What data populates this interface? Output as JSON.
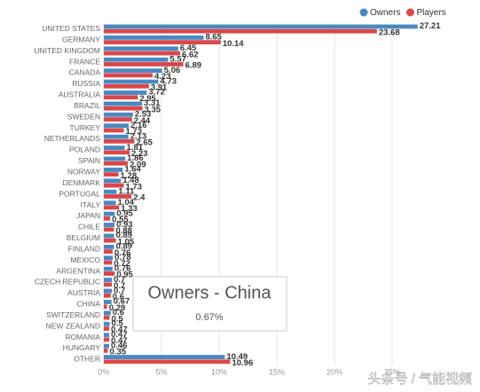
{
  "chart_data": {
    "type": "hbar",
    "categories": [
      "UNITED STATES",
      "GERMANY",
      "UNITED KINGDOM",
      "FRANCE",
      "CANADA",
      "RUSSIA",
      "AUSTRALIA",
      "BRAZIL",
      "SWEDEN",
      "TURKEY",
      "NETHERLANDS",
      "POLAND",
      "SPAIN",
      "NORWAY",
      "DENMARK",
      "PORTUGAL",
      "ITALY",
      "JAPAN",
      "CHILE",
      "BELGIUM",
      "FINLAND",
      "MEXICO",
      "ARGENTINA",
      "CZECH REPUBLIC",
      "AUSTRIA",
      "CHINA",
      "SWITZERLAND",
      "NEW ZEALAND",
      "ROMANIA",
      "HUNGARY",
      "OTHER"
    ],
    "series": [
      {
        "name": "Owners",
        "color": "#4a88c2",
        "values": [
          27.21,
          8.65,
          6.45,
          5.57,
          5.06,
          4.73,
          3.72,
          3.31,
          2.53,
          2.16,
          2.13,
          1.81,
          1.86,
          1.64,
          1.48,
          1.11,
          1.04,
          0.95,
          0.93,
          0.89,
          0.89,
          0.78,
          0.76,
          0.7,
          0.7,
          0.67,
          0.6,
          0.5,
          0.47,
          0.46,
          10.49
        ]
      },
      {
        "name": "Players",
        "color": "#d9474a",
        "values": [
          23.68,
          10.14,
          6.62,
          6.89,
          4.23,
          3.91,
          2.95,
          3.35,
          2.44,
          1.73,
          2.65,
          2.23,
          2.09,
          1.28,
          1.73,
          2.4,
          1.33,
          0.55,
          0.88,
          1.05,
          0.76,
          0.72,
          0.95,
          0.7,
          0.6,
          0.29,
          0.5,
          0.47,
          0.47,
          0.35,
          10.96
        ]
      }
    ],
    "xlim": [
      0,
      27.5
    ],
    "xticks": [
      {
        "value": 0,
        "label": "0%"
      },
      {
        "value": 5,
        "label": "5%"
      },
      {
        "value": 10,
        "label": "10%"
      },
      {
        "value": 15,
        "label": "15%"
      },
      {
        "value": 20,
        "label": "20%"
      },
      {
        "value": 25,
        "label": "25%"
      }
    ],
    "grid": true,
    "legend": "top-right",
    "tooltip": {
      "title": "Owners - China",
      "value": "0.67%"
    }
  },
  "watermark": "头条号 / 气能视频"
}
